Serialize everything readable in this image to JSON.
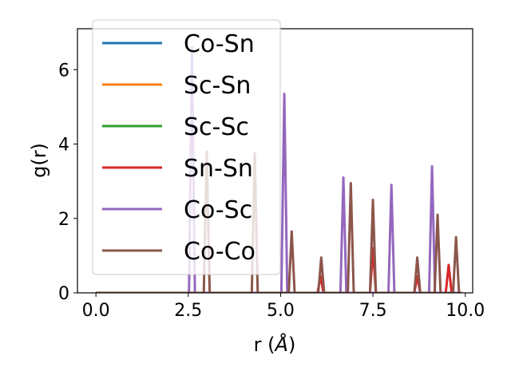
{
  "chart_data": {
    "type": "line",
    "xlabel_prefix": "r (",
    "xlabel_unit": "Å",
    "xlabel_suffix": ")",
    "ylabel": "g(r)",
    "xlim": [
      -0.5,
      10.2
    ],
    "ylim": [
      0,
      7.1
    ],
    "xticks": [
      0.0,
      2.5,
      5.0,
      7.5,
      10.0
    ],
    "xtick_labels": [
      "0.0",
      "2.5",
      "5.0",
      "7.5",
      "10.0"
    ],
    "yticks": [
      0,
      2,
      4,
      6
    ],
    "ytick_labels": [
      "0",
      "2",
      "4",
      "6"
    ],
    "grid": false,
    "legend_position": "upper-left",
    "peak_half_width": 0.08,
    "series": [
      {
        "name": "Co-Sn",
        "color": "#1f77b4",
        "peaks": []
      },
      {
        "name": "Sc-Sn",
        "color": "#ff7f0e",
        "peaks": []
      },
      {
        "name": "Sc-Sc",
        "color": "#2ca02c",
        "peaks": []
      },
      {
        "name": "Sn-Sn",
        "color": "#d62728",
        "peaks": [
          [
            6.08,
            0.45
          ],
          [
            7.5,
            1.2
          ],
          [
            8.7,
            0.45
          ],
          [
            9.55,
            0.75
          ]
        ]
      },
      {
        "name": "Co-Sc",
        "color": "#9467bd",
        "peaks": [
          [
            2.6,
            6.6
          ],
          [
            5.1,
            5.35
          ],
          [
            6.7,
            3.1
          ],
          [
            8.0,
            2.9
          ],
          [
            9.1,
            3.4
          ]
        ]
      },
      {
        "name": "Co-Co",
        "color": "#8c564b",
        "peaks": [
          [
            3.0,
            3.8
          ],
          [
            4.3,
            3.75
          ],
          [
            5.3,
            1.65
          ],
          [
            6.1,
            0.95
          ],
          [
            6.9,
            2.95
          ],
          [
            7.5,
            2.5
          ],
          [
            8.7,
            0.95
          ],
          [
            9.25,
            2.1
          ],
          [
            9.75,
            1.5
          ]
        ]
      }
    ]
  }
}
